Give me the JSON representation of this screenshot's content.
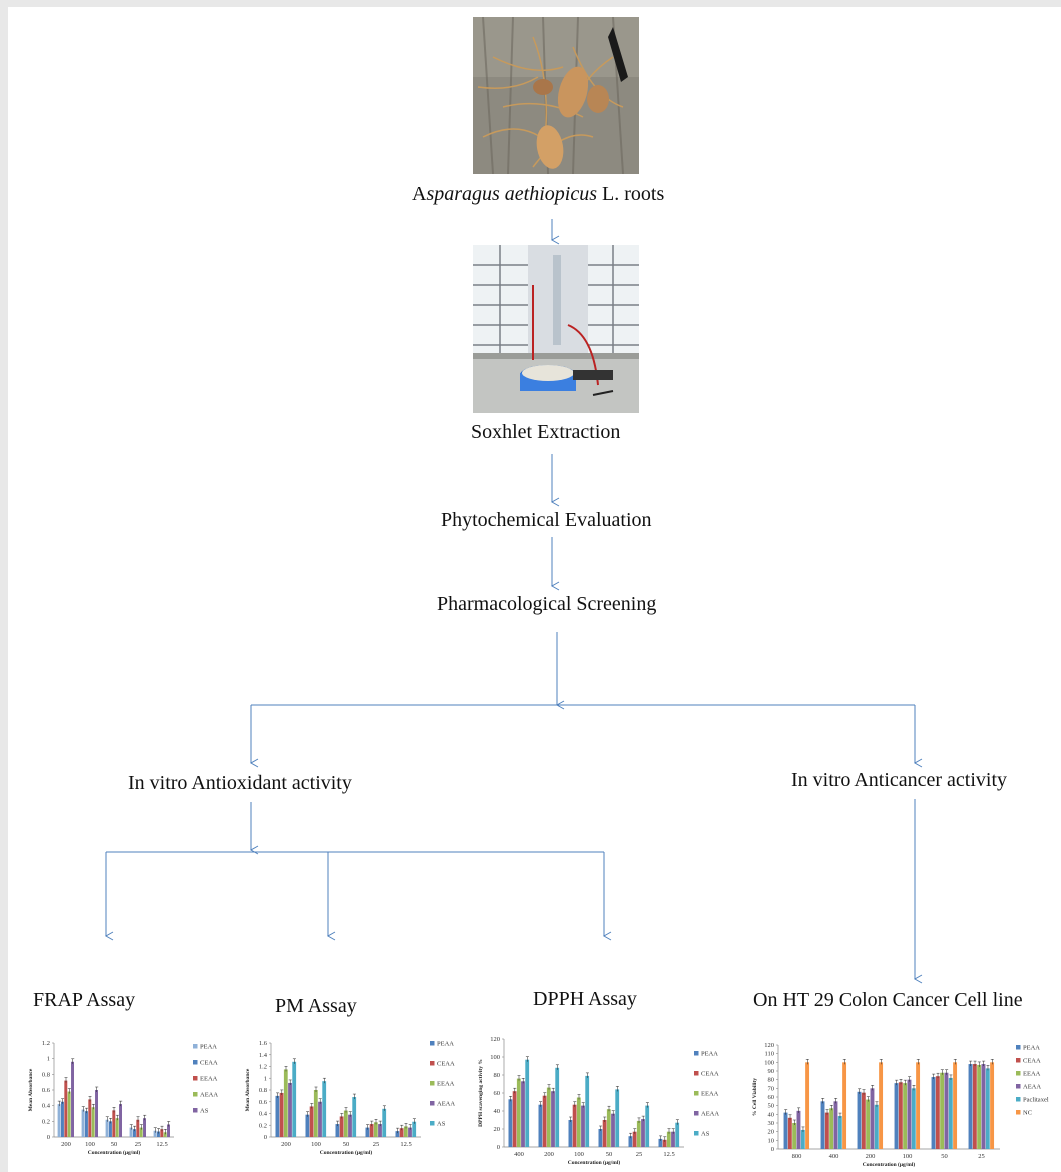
{
  "flow": {
    "roots_label_a": "A",
    "roots_label_species": "sparagus aethiopicus",
    "roots_label_rest": " L. roots",
    "soxhlet": "Soxhlet Extraction",
    "phyto": "Phytochemical  Evaluation",
    "pharma": "Pharmacological  Screening",
    "antioxidant": "In vitro Antioxidant  activity",
    "anticancer": "In vitro Anticancer  activity",
    "frap": "FRAP Assay",
    "pm": "PM Assay",
    "dpph": "DPPH Assay",
    "ht29": "On HT 29 Colon Cancer Cell line"
  },
  "photos": {
    "roots": "root-photo",
    "soxhlet": "soxhlet-apparatus-photo"
  },
  "chart_data": [
    {
      "id": "frap",
      "type": "bar",
      "ylabel": "Mean Absorbance",
      "xlabel": "Concentration (µg/ml)",
      "categories": [
        "200",
        "100",
        "50",
        "25",
        "12.5"
      ],
      "ylim": [
        0,
        1.2
      ],
      "yticks": [
        "0",
        "0.2",
        "0.4",
        "0.6",
        "0.8",
        "1",
        "1.2"
      ],
      "series": [
        {
          "name": "PEAA",
          "color": "#8fb1d8",
          "values": [
            0.42,
            0.35,
            0.22,
            0.12,
            0.08
          ]
        },
        {
          "name": "CEAA",
          "color": "#4f81bd",
          "values": [
            0.45,
            0.33,
            0.2,
            0.1,
            0.07
          ]
        },
        {
          "name": "EEAA",
          "color": "#c0504d",
          "values": [
            0.72,
            0.48,
            0.34,
            0.22,
            0.1
          ]
        },
        {
          "name": "AEAA",
          "color": "#9bbb59",
          "values": [
            0.58,
            0.38,
            0.24,
            0.12,
            0.06
          ]
        },
        {
          "name": "AS",
          "color": "#8064a2",
          "values": [
            0.96,
            0.6,
            0.42,
            0.24,
            0.16
          ]
        }
      ]
    },
    {
      "id": "pm",
      "type": "bar",
      "ylabel": "Mean Absorbance",
      "xlabel": "Concentration (µg/ml)",
      "categories": [
        "200",
        "100",
        "50",
        "25",
        "12.5"
      ],
      "ylim": [
        0,
        1.6
      ],
      "yticks": [
        "0",
        "0.2",
        "0.4",
        "0.6",
        "0.8",
        "1",
        "1.2",
        "1.4",
        "1.6"
      ],
      "series": [
        {
          "name": "PEAA",
          "color": "#4f81bd",
          "values": [
            0.7,
            0.38,
            0.22,
            0.16,
            0.1
          ]
        },
        {
          "name": "CEAA",
          "color": "#c0504d",
          "values": [
            0.75,
            0.52,
            0.35,
            0.22,
            0.15
          ]
        },
        {
          "name": "EEAA",
          "color": "#9bbb59",
          "values": [
            1.15,
            0.8,
            0.45,
            0.25,
            0.18
          ]
        },
        {
          "name": "AEAA",
          "color": "#8064a2",
          "values": [
            0.92,
            0.6,
            0.38,
            0.22,
            0.16
          ]
        },
        {
          "name": "AS",
          "color": "#4bacc6",
          "values": [
            1.28,
            0.95,
            0.68,
            0.48,
            0.26
          ]
        }
      ]
    },
    {
      "id": "dpph",
      "type": "bar",
      "ylabel": "DPPH scavenging activity %",
      "xlabel": "Concentration (µg/ml)",
      "categories": [
        "400",
        "200",
        "100",
        "50",
        "25",
        "12.5"
      ],
      "ylim": [
        0,
        120
      ],
      "yticks": [
        "0",
        "20",
        "40",
        "60",
        "80",
        "100",
        "120"
      ],
      "series": [
        {
          "name": "PEAA",
          "color": "#4f81bd",
          "values": [
            53,
            47,
            30,
            20,
            12,
            9
          ]
        },
        {
          "name": "CEAA",
          "color": "#c0504d",
          "values": [
            62,
            57,
            47,
            30,
            17,
            8
          ]
        },
        {
          "name": "EEAA",
          "color": "#9bbb59",
          "values": [
            76,
            66,
            55,
            42,
            29,
            17
          ]
        },
        {
          "name": "AEAA",
          "color": "#8064a2",
          "values": [
            73,
            62,
            46,
            37,
            31,
            17
          ]
        },
        {
          "name": "AS",
          "color": "#4bacc6",
          "values": [
            97,
            88,
            79,
            64,
            46,
            27
          ]
        }
      ]
    },
    {
      "id": "ht29",
      "type": "bar",
      "ylabel": "% Cell Viability",
      "xlabel": "Concentration (µg/ml)",
      "categories": [
        "800",
        "400",
        "200",
        "100",
        "50",
        "25"
      ],
      "ylim": [
        0,
        120
      ],
      "yticks": [
        "0",
        "10",
        "20",
        "30",
        "40",
        "50",
        "60",
        "70",
        "80",
        "90",
        "100",
        "110",
        "120"
      ],
      "series": [
        {
          "name": "PEAA",
          "color": "#4f81bd",
          "values": [
            42,
            55,
            66,
            76,
            83,
            98
          ]
        },
        {
          "name": "CEAA",
          "color": "#c0504d",
          "values": [
            36,
            42,
            65,
            77,
            84,
            98
          ]
        },
        {
          "name": "EEAA",
          "color": "#9bbb59",
          "values": [
            30,
            47,
            57,
            76,
            88,
            97
          ]
        },
        {
          "name": "AEAA",
          "color": "#8064a2",
          "values": [
            44,
            55,
            70,
            80,
            88,
            98
          ]
        },
        {
          "name": "Paclitaxel",
          "color": "#4bacc6",
          "values": [
            22,
            38,
            51,
            70,
            82,
            93
          ]
        },
        {
          "name": "NC",
          "color": "#f79646",
          "values": [
            100,
            100,
            100,
            100,
            100,
            100
          ]
        }
      ]
    }
  ]
}
